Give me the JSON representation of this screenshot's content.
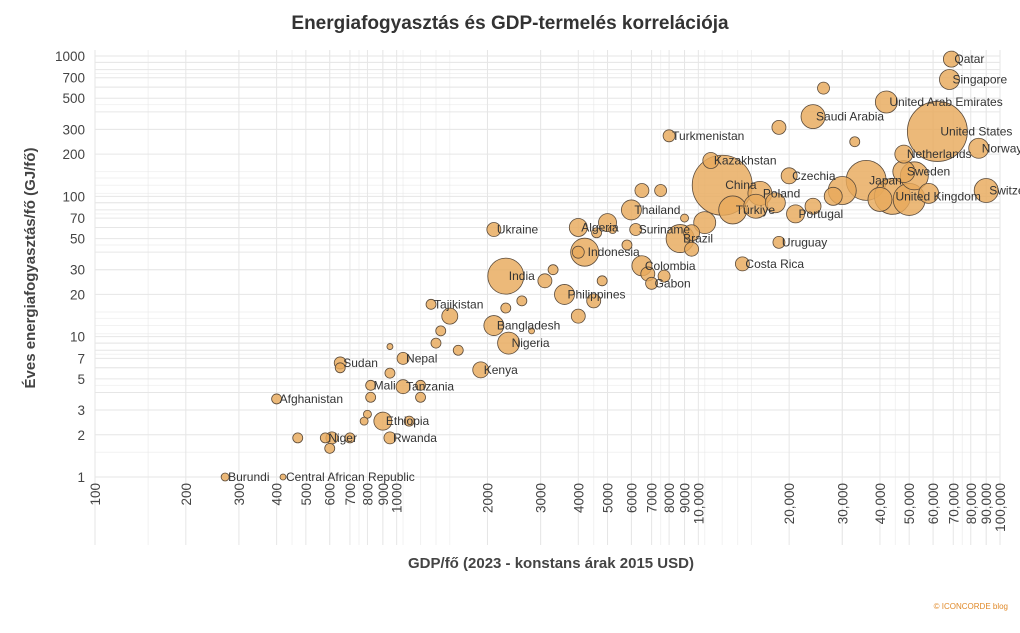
{
  "chart_data": {
    "type": "scatter",
    "title": "Energiafogyasztás és GDP-termelés korrelációja",
    "xlabel": "GDP/fő (2023 - konstans árak 2015 USD)",
    "ylabel": "Éves energiafogyasztás/fő (GJ/fő)",
    "xscale": "log",
    "yscale": "log",
    "xlim": [
      100,
      100000
    ],
    "ylim": [
      1,
      1000
    ],
    "x_ticks": [
      100,
      200,
      300,
      400,
      500,
      600,
      700,
      800,
      900,
      1000,
      2000,
      3000,
      4000,
      5000,
      6000,
      7000,
      8000,
      9000,
      10000,
      20000,
      30000,
      40000,
      50000,
      60000,
      70000,
      80000,
      90000,
      100000
    ],
    "x_tick_labels": [
      "100",
      "200",
      "300",
      "400",
      "500",
      "600",
      "700",
      "800",
      "900",
      "1000",
      "2000",
      "3000",
      "4000",
      "5000",
      "6000",
      "7000",
      "8000",
      "9000",
      "10,000",
      "20,000",
      "30,000",
      "40,000",
      "50,000",
      "60,000",
      "70,000",
      "80,000",
      "90,000",
      "100,000"
    ],
    "y_ticks": [
      1,
      2,
      3,
      5,
      7,
      10,
      20,
      30,
      50,
      70,
      100,
      200,
      300,
      500,
      700,
      1000
    ],
    "y_tick_labels": [
      "1",
      "2",
      "3",
      "5",
      "7",
      "10",
      "20",
      "30",
      "50",
      "70",
      "100",
      "200",
      "300",
      "500",
      "700",
      "1000"
    ],
    "grid": true,
    "points": [
      {
        "name": "Qatar",
        "x": 69000,
        "y": 950,
        "r": 8,
        "label": true
      },
      {
        "name": "Singapore",
        "x": 68000,
        "y": 680,
        "r": 10,
        "label": true
      },
      {
        "name": "United Arab Emirates",
        "x": 42000,
        "y": 470,
        "r": 11,
        "label": true
      },
      {
        "name": "Saudi Arabia",
        "x": 24000,
        "y": 370,
        "r": 12,
        "label": true
      },
      {
        "name": "United States",
        "x": 62000,
        "y": 290,
        "r": 30,
        "label": true
      },
      {
        "name": "Turkmenistan",
        "x": 8000,
        "y": 270,
        "r": 6,
        "label": true
      },
      {
        "name": "Netherlands",
        "x": 48000,
        "y": 200,
        "r": 9,
        "label": true
      },
      {
        "name": "Norway",
        "x": 85000,
        "y": 220,
        "r": 10,
        "label": true
      },
      {
        "name": "Kazakhstan",
        "x": 11000,
        "y": 180,
        "r": 8,
        "label": true
      },
      {
        "name": "Czechia",
        "x": 20000,
        "y": 140,
        "r": 8,
        "label": true
      },
      {
        "name": "Sweden",
        "x": 48000,
        "y": 150,
        "r": 11,
        "label": true
      },
      {
        "name": "Japan",
        "x": 36000,
        "y": 130,
        "r": 20,
        "label": true
      },
      {
        "name": "China",
        "x": 12000,
        "y": 120,
        "r": 30,
        "label": true
      },
      {
        "name": "Poland",
        "x": 16000,
        "y": 105,
        "r": 12,
        "label": true
      },
      {
        "name": "Switzerland",
        "x": 90000,
        "y": 110,
        "r": 12,
        "label": true
      },
      {
        "name": "United Kingdom",
        "x": 44000,
        "y": 100,
        "r": 18,
        "label": true
      },
      {
        "name": "Thailand",
        "x": 6000,
        "y": 80,
        "r": 10,
        "label": true
      },
      {
        "name": "Türkiye",
        "x": 13000,
        "y": 80,
        "r": 14,
        "label": true
      },
      {
        "name": "Portugal",
        "x": 21000,
        "y": 75,
        "r": 9,
        "label": true
      },
      {
        "name": "Algeria",
        "x": 4000,
        "y": 60,
        "r": 9,
        "label": true
      },
      {
        "name": "Suriname",
        "x": 6200,
        "y": 58,
        "r": 6,
        "label": true
      },
      {
        "name": "Ukraine",
        "x": 2100,
        "y": 58,
        "r": 7,
        "label": true
      },
      {
        "name": "Brazil",
        "x": 8700,
        "y": 50,
        "r": 14,
        "label": true
      },
      {
        "name": "Uruguay",
        "x": 18500,
        "y": 47,
        "r": 6,
        "label": true
      },
      {
        "name": "Indonesia",
        "x": 4200,
        "y": 40,
        "r": 14,
        "label": true
      },
      {
        "name": "Colombia",
        "x": 6500,
        "y": 32,
        "r": 10,
        "label": true
      },
      {
        "name": "Costa Rica",
        "x": 14000,
        "y": 33,
        "r": 7,
        "label": true
      },
      {
        "name": "India",
        "x": 2300,
        "y": 27,
        "r": 18,
        "label": true
      },
      {
        "name": "Gabon",
        "x": 7000,
        "y": 24,
        "r": 6,
        "label": true
      },
      {
        "name": "Philippines",
        "x": 3600,
        "y": 20,
        "r": 10,
        "label": true
      },
      {
        "name": "Tajikistan",
        "x": 1300,
        "y": 17,
        "r": 5,
        "label": true
      },
      {
        "name": "Bangladesh",
        "x": 2100,
        "y": 12,
        "r": 10,
        "label": true
      },
      {
        "name": "Nigeria",
        "x": 2350,
        "y": 9,
        "r": 11,
        "label": true
      },
      {
        "name": "Sudan",
        "x": 650,
        "y": 6.5,
        "r": 6,
        "label": true
      },
      {
        "name": "Nepal",
        "x": 1050,
        "y": 7,
        "r": 6,
        "label": true
      },
      {
        "name": "Kenya",
        "x": 1900,
        "y": 5.8,
        "r": 8,
        "label": true
      },
      {
        "name": "Mali",
        "x": 820,
        "y": 4.5,
        "r": 5,
        "label": true
      },
      {
        "name": "Tanzania",
        "x": 1050,
        "y": 4.4,
        "r": 7,
        "label": true
      },
      {
        "name": "Afghanistan",
        "x": 400,
        "y": 3.6,
        "r": 5,
        "label": true
      },
      {
        "name": "Ethiopia",
        "x": 900,
        "y": 2.5,
        "r": 9,
        "label": true
      },
      {
        "name": "Niger",
        "x": 580,
        "y": 1.9,
        "r": 5,
        "label": true
      },
      {
        "name": "Rwanda",
        "x": 950,
        "y": 1.9,
        "r": 6,
        "label": true
      },
      {
        "name": "Burundi",
        "x": 270,
        "y": 1.0,
        "r": 4,
        "label": true
      },
      {
        "name": "Central African Republic",
        "x": 420,
        "y": 1.0,
        "r": 3,
        "label": true
      },
      {
        "x": 26000,
        "y": 590,
        "r": 6
      },
      {
        "x": 18500,
        "y": 310,
        "r": 7
      },
      {
        "x": 33000,
        "y": 245,
        "r": 5
      },
      {
        "x": 30000,
        "y": 110,
        "r": 14
      },
      {
        "x": 40000,
        "y": 95,
        "r": 12
      },
      {
        "x": 52000,
        "y": 140,
        "r": 14
      },
      {
        "x": 50000,
        "y": 95,
        "r": 16
      },
      {
        "x": 58000,
        "y": 105,
        "r": 10
      },
      {
        "x": 28000,
        "y": 100,
        "r": 9
      },
      {
        "x": 24000,
        "y": 85,
        "r": 8
      },
      {
        "x": 18000,
        "y": 90,
        "r": 10
      },
      {
        "x": 15500,
        "y": 85,
        "r": 12
      },
      {
        "x": 10500,
        "y": 65,
        "r": 11
      },
      {
        "x": 9500,
        "y": 55,
        "r": 8
      },
      {
        "x": 9000,
        "y": 70,
        "r": 4
      },
      {
        "x": 7500,
        "y": 110,
        "r": 6
      },
      {
        "x": 6500,
        "y": 110,
        "r": 7
      },
      {
        "x": 5000,
        "y": 65,
        "r": 9
      },
      {
        "x": 4600,
        "y": 55,
        "r": 5
      },
      {
        "x": 5200,
        "y": 58,
        "r": 4
      },
      {
        "x": 4000,
        "y": 40,
        "r": 6
      },
      {
        "x": 5800,
        "y": 45,
        "r": 5
      },
      {
        "x": 3300,
        "y": 30,
        "r": 5
      },
      {
        "x": 4800,
        "y": 25,
        "r": 5
      },
      {
        "x": 6800,
        "y": 28,
        "r": 7
      },
      {
        "x": 7700,
        "y": 27,
        "r": 6
      },
      {
        "x": 9500,
        "y": 42,
        "r": 7
      },
      {
        "x": 3100,
        "y": 25,
        "r": 7
      },
      {
        "x": 4000,
        "y": 14,
        "r": 7
      },
      {
        "x": 4500,
        "y": 18,
        "r": 7
      },
      {
        "x": 2600,
        "y": 18,
        "r": 5
      },
      {
        "x": 2300,
        "y": 16,
        "r": 5
      },
      {
        "x": 1500,
        "y": 14,
        "r": 8
      },
      {
        "x": 1400,
        "y": 11,
        "r": 5
      },
      {
        "x": 2800,
        "y": 11,
        "r": 3
      },
      {
        "x": 1350,
        "y": 9,
        "r": 5
      },
      {
        "x": 1600,
        "y": 8,
        "r": 5
      },
      {
        "x": 950,
        "y": 8.5,
        "r": 3
      },
      {
        "x": 950,
        "y": 5.5,
        "r": 5
      },
      {
        "x": 650,
        "y": 6,
        "r": 5
      },
      {
        "x": 820,
        "y": 3.7,
        "r": 5
      },
      {
        "x": 1200,
        "y": 3.7,
        "r": 5
      },
      {
        "x": 1200,
        "y": 4.5,
        "r": 5
      },
      {
        "x": 800,
        "y": 2.8,
        "r": 4
      },
      {
        "x": 1100,
        "y": 2.5,
        "r": 5
      },
      {
        "x": 780,
        "y": 2.5,
        "r": 4
      },
      {
        "x": 610,
        "y": 1.9,
        "r": 6
      },
      {
        "x": 700,
        "y": 1.9,
        "r": 5
      },
      {
        "x": 470,
        "y": 1.9,
        "r": 5
      },
      {
        "x": 600,
        "y": 1.6,
        "r": 5
      }
    ]
  },
  "credit": "© ICONCORDE blog"
}
